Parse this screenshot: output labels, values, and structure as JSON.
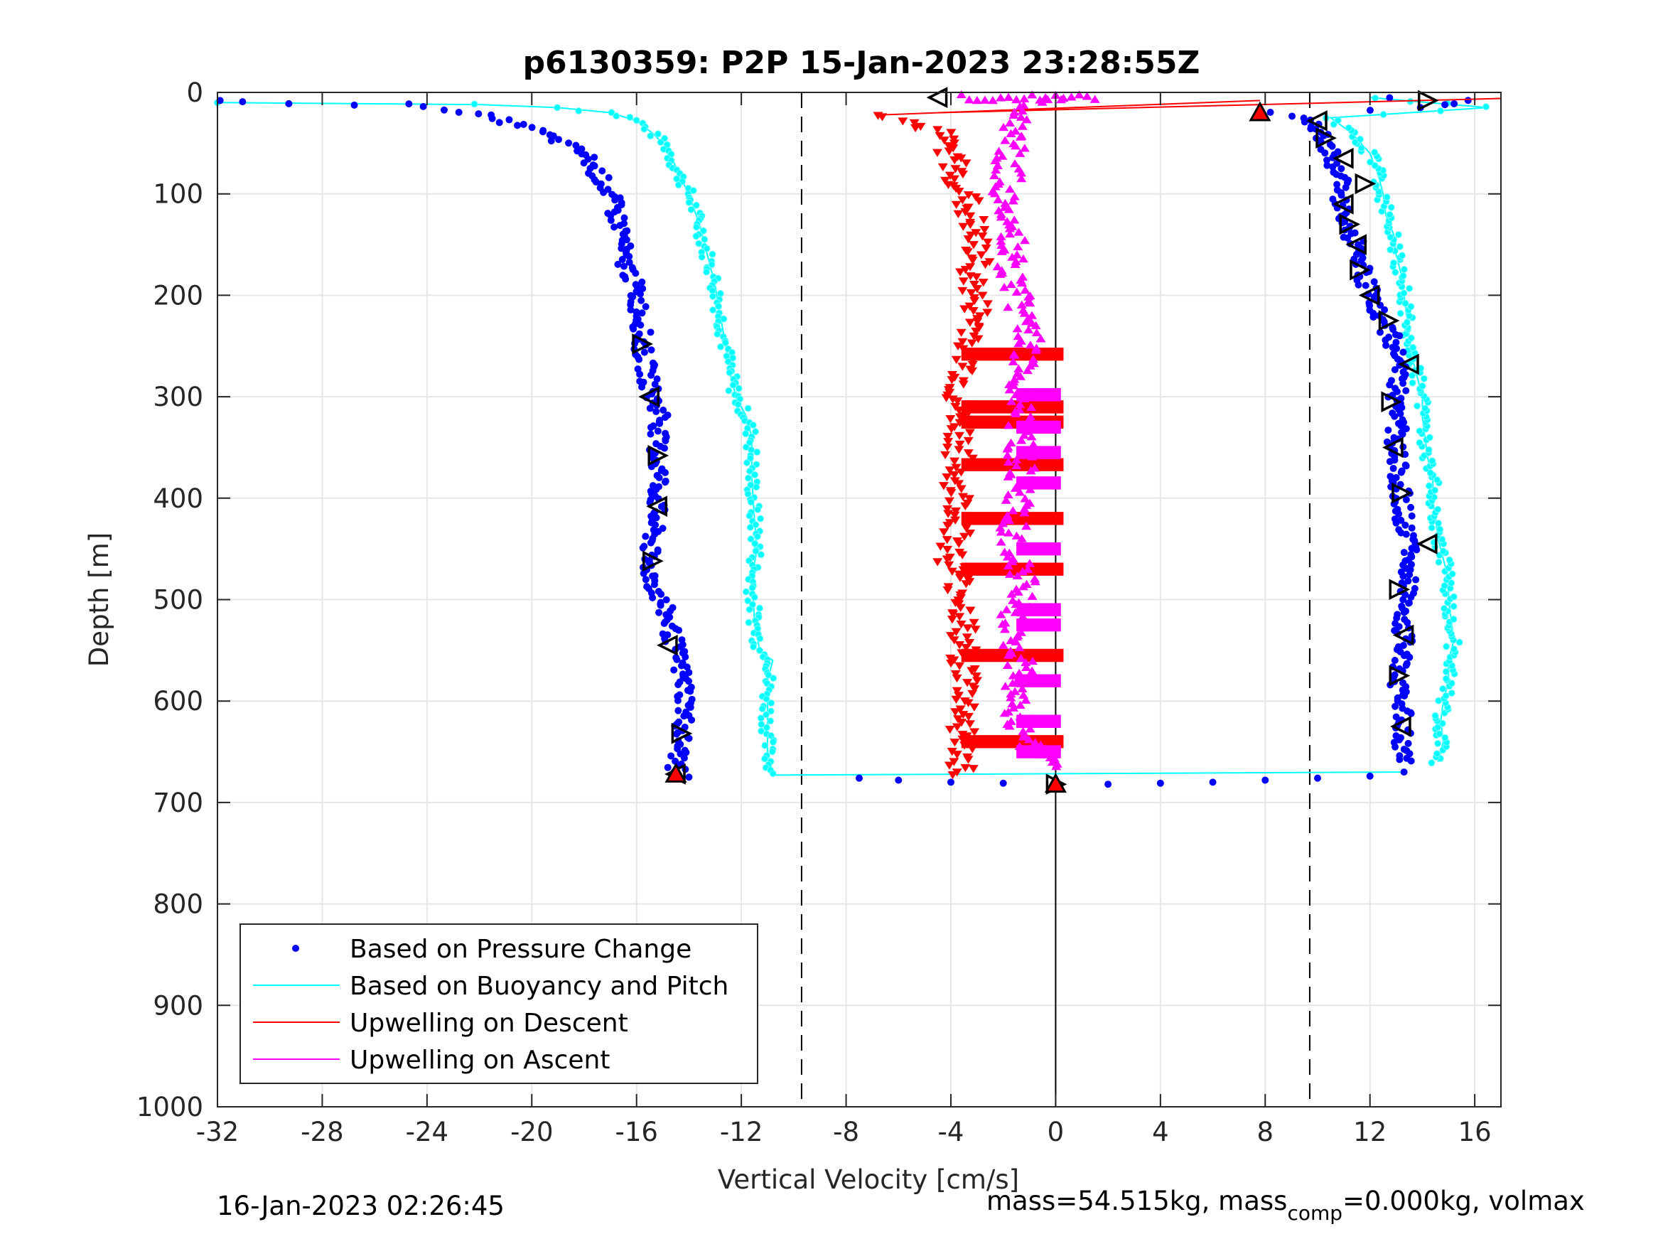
{
  "chart_data": {
    "type": "scatter",
    "title": "p6130359: P2P 15-Jan-2023 23:28:55Z",
    "xlabel": "Vertical Velocity [cm/s]",
    "ylabel": "Depth [m]",
    "xlim": [
      -32,
      17
    ],
    "ylim": [
      0,
      1000
    ],
    "y_reversed": true,
    "grid": true,
    "legend_position": "bottom-left",
    "x_ticks": [
      "-32",
      "-28",
      "-24",
      "-20",
      "-16",
      "-12",
      "-8",
      "-4",
      "0",
      "4",
      "8",
      "12",
      "16"
    ],
    "y_ticks": [
      "0",
      "100",
      "200",
      "300",
      "400",
      "500",
      "600",
      "700",
      "800",
      "900",
      "1000"
    ],
    "reference_lines": {
      "dashed_x": [
        -9.7,
        9.7
      ],
      "solid_x": [
        0
      ]
    },
    "series": [
      {
        "name": "Based on Pressure Change",
        "color": "#0000ff",
        "marker": "dot",
        "descent": [
          [
            -31.6,
            8
          ],
          [
            -30.8,
            9
          ],
          [
            -29,
            12
          ],
          [
            -27,
            13
          ],
          [
            -25,
            12
          ],
          [
            -23,
            17
          ],
          [
            -21.5,
            25
          ],
          [
            -20,
            35
          ],
          [
            -19,
            48
          ],
          [
            -18,
            60
          ],
          [
            -17.5,
            80
          ],
          [
            -17,
            100
          ],
          [
            -16.8,
            120
          ],
          [
            -16.5,
            140
          ],
          [
            -16.6,
            160
          ],
          [
            -16.2,
            180
          ],
          [
            -16,
            200
          ],
          [
            -15.8,
            225
          ],
          [
            -15.8,
            250
          ],
          [
            -15.6,
            275
          ],
          [
            -15.4,
            300
          ],
          [
            -15,
            320
          ],
          [
            -15.2,
            340
          ],
          [
            -15.2,
            360
          ],
          [
            -15.1,
            380
          ],
          [
            -15.2,
            400
          ],
          [
            -15.3,
            420
          ],
          [
            -15.4,
            440
          ],
          [
            -15.6,
            460
          ],
          [
            -15.4,
            480
          ],
          [
            -15.1,
            500
          ],
          [
            -14.8,
            520
          ],
          [
            -14.6,
            540
          ],
          [
            -14.4,
            560
          ],
          [
            -14.2,
            580
          ],
          [
            -14.1,
            600
          ],
          [
            -14.2,
            620
          ],
          [
            -14.3,
            640
          ],
          [
            -14.4,
            655
          ],
          [
            -14.5,
            670
          ]
        ],
        "turnaround": [
          [
            -14,
            675
          ],
          [
            -7.5,
            676
          ],
          [
            -6,
            678
          ],
          [
            -4,
            680
          ],
          [
            -2,
            681
          ],
          [
            0,
            682
          ],
          [
            2,
            682
          ],
          [
            4,
            681
          ],
          [
            6,
            680
          ],
          [
            8,
            678
          ],
          [
            10,
            676
          ],
          [
            12,
            674
          ],
          [
            13.3,
            670
          ]
        ],
        "ascent": [
          [
            13.3,
            660
          ],
          [
            13.2,
            640
          ],
          [
            13.3,
            620
          ],
          [
            13.2,
            600
          ],
          [
            13.1,
            580
          ],
          [
            13.2,
            560
          ],
          [
            13.3,
            540
          ],
          [
            13.2,
            520
          ],
          [
            13.4,
            500
          ],
          [
            13.5,
            480
          ],
          [
            13.6,
            460
          ],
          [
            13.5,
            440
          ],
          [
            13.3,
            420
          ],
          [
            13.2,
            400
          ],
          [
            13.1,
            380
          ],
          [
            13.0,
            360
          ],
          [
            13.0,
            340
          ],
          [
            13.1,
            320
          ],
          [
            13.0,
            300
          ],
          [
            13.1,
            280
          ],
          [
            13.0,
            260
          ],
          [
            12.8,
            240
          ],
          [
            12.4,
            220
          ],
          [
            12.0,
            200
          ],
          [
            11.8,
            180
          ],
          [
            11.6,
            160
          ],
          [
            11.3,
            140
          ],
          [
            11.0,
            120
          ],
          [
            10.9,
            100
          ],
          [
            10.8,
            80
          ],
          [
            10.5,
            60
          ],
          [
            10.2,
            45
          ],
          [
            10,
            35
          ],
          [
            9.5,
            25
          ],
          [
            8.5,
            20
          ],
          [
            12,
            18
          ],
          [
            14,
            15
          ],
          [
            16,
            8
          ],
          [
            13,
            5
          ]
        ]
      },
      {
        "name": "Based on Buoyancy and Pitch",
        "color": "#00ffff",
        "marker": "line",
        "descent": [
          [
            -32,
            10
          ],
          [
            -22,
            12
          ],
          [
            -19,
            15
          ],
          [
            -17,
            20
          ],
          [
            -16,
            28
          ],
          [
            -15.4,
            40
          ],
          [
            -14.8,
            55
          ],
          [
            -14.4,
            80
          ],
          [
            -14,
            100
          ],
          [
            -13.6,
            130
          ],
          [
            -13.3,
            160
          ],
          [
            -13.0,
            190
          ],
          [
            -12.8,
            220
          ],
          [
            -12.6,
            250
          ],
          [
            -12.4,
            280
          ],
          [
            -12.2,
            300
          ],
          [
            -11.8,
            320
          ],
          [
            -11.6,
            340
          ],
          [
            -11.6,
            380
          ],
          [
            -11.5,
            420
          ],
          [
            -11.4,
            450
          ],
          [
            -11.6,
            480
          ],
          [
            -11.5,
            520
          ],
          [
            -11.3,
            550
          ],
          [
            -10.8,
            560
          ],
          [
            -11.0,
            580
          ],
          [
            -11.0,
            620
          ],
          [
            -11.0,
            650
          ],
          [
            -10.8,
            672
          ]
        ],
        "turnaround": [
          [
            -10.8,
            673
          ],
          [
            13.3,
            670
          ]
        ],
        "ascent": [
          [
            14.6,
            660
          ],
          [
            14.8,
            640
          ],
          [
            14.7,
            620
          ],
          [
            14.8,
            600
          ],
          [
            15,
            580
          ],
          [
            15,
            560
          ],
          [
            15.2,
            540
          ],
          [
            15.1,
            520
          ],
          [
            15,
            500
          ],
          [
            15,
            480
          ],
          [
            14.8,
            460
          ],
          [
            14.6,
            440
          ],
          [
            14.5,
            420
          ],
          [
            14.4,
            400
          ],
          [
            14.4,
            380
          ],
          [
            14.2,
            360
          ],
          [
            14.1,
            340
          ],
          [
            14,
            320
          ],
          [
            14,
            300
          ],
          [
            13.8,
            280
          ],
          [
            13.6,
            260
          ],
          [
            13.5,
            240
          ],
          [
            13.4,
            220
          ],
          [
            13.3,
            200
          ],
          [
            13.2,
            180
          ],
          [
            13.0,
            160
          ],
          [
            12.9,
            140
          ],
          [
            12.6,
            120
          ],
          [
            12.5,
            100
          ],
          [
            12.3,
            80
          ],
          [
            12.0,
            60
          ],
          [
            11.3,
            40
          ],
          [
            10.5,
            25
          ],
          [
            16.5,
            15
          ],
          [
            12,
            5
          ]
        ]
      },
      {
        "name": "Upwelling on Descent",
        "color": "#ff0000",
        "marker": "triangle-down",
        "points": [
          [
            -6.5,
            22
          ],
          [
            -5.5,
            30
          ],
          [
            -4.5,
            40
          ],
          [
            -4,
            60
          ],
          [
            -3.8,
            80
          ],
          [
            -3.5,
            100
          ],
          [
            -3.2,
            130
          ],
          [
            -3,
            160
          ],
          [
            -3.2,
            190
          ],
          [
            -3,
            220
          ],
          [
            -3.2,
            250
          ],
          [
            -3.5,
            280
          ],
          [
            -3.8,
            300
          ],
          [
            -3.6,
            330
          ],
          [
            -3.7,
            360
          ],
          [
            -3.8,
            390
          ],
          [
            -3.6,
            420
          ],
          [
            -4,
            460
          ],
          [
            -3.5,
            500
          ],
          [
            -3.6,
            540
          ],
          [
            -3.4,
            580
          ],
          [
            -3.5,
            620
          ],
          [
            -3.6,
            660
          ],
          [
            -3.6,
            672
          ]
        ],
        "bands_depth": [
          258,
          310,
          325,
          367,
          420,
          470,
          555,
          640
        ]
      },
      {
        "name": "Upwelling on Ascent",
        "color": "#ff00ff",
        "marker": "triangle-up",
        "points": [
          [
            -0.2,
            665
          ],
          [
            -1.2,
            640
          ],
          [
            -1.5,
            600
          ],
          [
            -1.4,
            560
          ],
          [
            -1.6,
            520
          ],
          [
            -1.2,
            480
          ],
          [
            -1.6,
            440
          ],
          [
            -1.5,
            400
          ],
          [
            -1.3,
            360
          ],
          [
            -1.5,
            320
          ],
          [
            -1.2,
            280
          ],
          [
            -1.0,
            250
          ],
          [
            -1.2,
            220
          ],
          [
            -1.6,
            190
          ],
          [
            -1.8,
            160
          ],
          [
            -1.5,
            130
          ],
          [
            -1.9,
            100
          ],
          [
            -1.8,
            70
          ],
          [
            -1.6,
            40
          ],
          [
            -1.5,
            20
          ],
          [
            0,
            5
          ]
        ],
        "bands_depth": [
          298,
          330,
          355,
          385,
          450,
          510,
          525,
          580,
          620,
          650
        ]
      },
      {
        "name": "markers",
        "color": "#000000",
        "marker": "triangle-outline",
        "points": [
          [
            -4.5,
            5
          ],
          [
            14.2,
            8
          ],
          [
            10,
            28
          ],
          [
            10.3,
            45
          ],
          [
            11,
            65
          ],
          [
            11.8,
            90
          ],
          [
            11,
            110
          ],
          [
            11.2,
            130
          ],
          [
            11.5,
            150
          ],
          [
            11.6,
            175
          ],
          [
            12.0,
            200
          ],
          [
            12.7,
            225
          ],
          [
            13.5,
            268
          ],
          [
            12.8,
            305
          ],
          [
            12.9,
            350
          ],
          [
            13.2,
            395
          ],
          [
            14.2,
            445
          ],
          [
            13.1,
            490
          ],
          [
            13.3,
            535
          ],
          [
            13.1,
            575
          ],
          [
            13.2,
            625
          ],
          [
            -15.8,
            248
          ],
          [
            -15.5,
            300
          ],
          [
            -15.2,
            358
          ],
          [
            -15.2,
            408
          ],
          [
            -15.4,
            462
          ],
          [
            -14.8,
            545
          ],
          [
            -14.3,
            632
          ],
          [
            -14.5,
            672
          ],
          [
            0,
            682
          ]
        ]
      },
      {
        "name": "red-markers",
        "color": "#ff0000",
        "marker": "triangle-filled",
        "points": [
          [
            7.8,
            20
          ],
          [
            -14.5,
            672
          ],
          [
            0,
            682
          ]
        ]
      }
    ]
  },
  "footer": {
    "timestamp": "16-Jan-2023 02:26:45",
    "mass_label": "mass=54.515kg, mass",
    "mass_sub": "comp",
    "mass_rest": "=0.000kg, volmax"
  },
  "legend": {
    "entries": [
      "Based on Pressure Change",
      "Based on Buoyancy and Pitch",
      "Upwelling on Descent",
      "Upwelling on Ascent"
    ]
  }
}
